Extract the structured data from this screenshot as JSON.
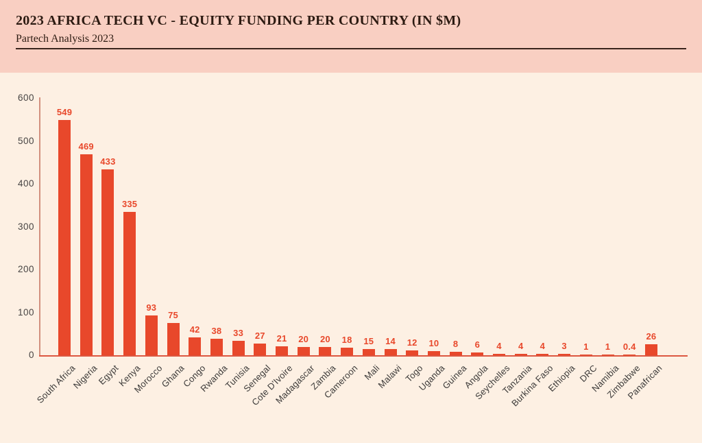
{
  "header": {
    "title": "2023 AFRICA TECH VC - EQUITY FUNDING PER COUNTRY (IN $M)",
    "subtitle": "Partech Analysis 2023"
  },
  "chart_data": {
    "type": "bar",
    "title": "2023 AFRICA TECH VC - EQUITY FUNDING PER COUNTRY (IN $M)",
    "subtitle": "Partech Analysis 2023",
    "categories": [
      "South Africa",
      "Nigeria",
      "Egypt",
      "Kenya",
      "Morocco",
      "Ghana",
      "Congo",
      "Rwanda",
      "Tunisia",
      "Senegal",
      "Cote D'Ivoire",
      "Madagascar",
      "Zambia",
      "Cameroon",
      "Mali",
      "Malawi",
      "Togo",
      "Uganda",
      "Guinea",
      "Angola",
      "Seychelles",
      "Tanzania",
      "Burkina Faso",
      "Ethiopia",
      "DRC",
      "Namibia",
      "Zimbabwe",
      "Panafrican"
    ],
    "values": [
      549,
      469,
      433,
      335,
      93,
      75,
      42,
      38,
      33,
      27,
      21,
      20,
      20,
      18,
      15,
      14,
      12,
      10,
      8,
      6,
      4,
      4,
      4,
      3,
      1,
      1,
      0.4,
      26
    ],
    "xlabel": "",
    "ylabel": "",
    "ylim": [
      0,
      600
    ],
    "yticks": [
      0,
      100,
      200,
      300,
      400,
      500,
      600
    ],
    "grid": false,
    "legend": false,
    "colors": {
      "bar": "#e8482b",
      "value_label": "#e8482b",
      "y_axis_text": "#474443",
      "x_axis_text": "#3c3a39",
      "header_bg": "#f9cfc2",
      "chart_bg": "#fdf0e3",
      "y_axis_line": "#d2907e",
      "x_axis_line": "#dc5740"
    }
  }
}
